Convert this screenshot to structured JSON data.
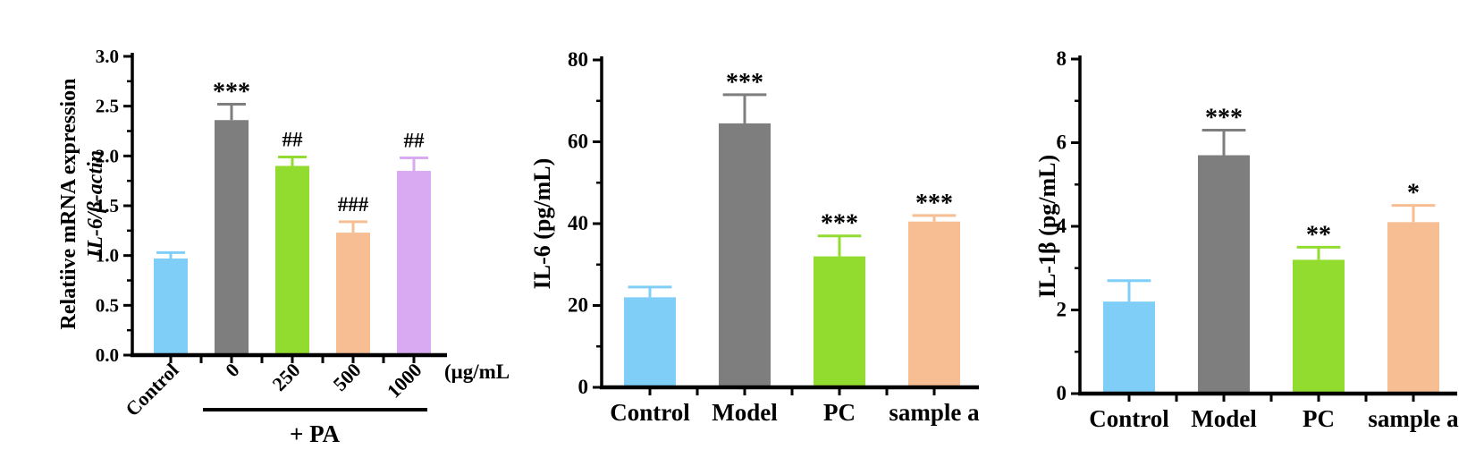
{
  "figure": {
    "background": "#ffffff",
    "axis_color": "#000000",
    "annotation_color": "#000000",
    "palette": {
      "blue": "#7ECEF8",
      "gray": "#7E7E7E",
      "green": "#92DC30",
      "orange": "#F6BE92",
      "purple": "#D9A9F1"
    }
  },
  "chart_data": [
    {
      "type": "bar",
      "id": "il6-mrna",
      "ylabel_line1": "Relatiive mRNA expression",
      "ylabel_line2": "IL-6/β-actin",
      "categories": [
        "Control",
        "0",
        "250",
        "500",
        "1000"
      ],
      "values": [
        0.97,
        2.36,
        1.9,
        1.23,
        1.85
      ],
      "errors": [
        0.06,
        0.16,
        0.09,
        0.11,
        0.13
      ],
      "annotations": [
        "",
        "***",
        "##",
        "###",
        "##"
      ],
      "bar_colors": [
        "#7ECEF8",
        "#7E7E7E",
        "#92DC30",
        "#F6BE92",
        "#D9A9F1"
      ],
      "ylim": [
        0,
        3.0
      ],
      "ytick_step": 0.5,
      "ytick_minor": 0.25,
      "ytick_decimals": 1,
      "x_unit_label": "(μg/mL",
      "group_label": "+ PA",
      "group_span": [
        "0",
        "1000"
      ],
      "x_labels_rotated": true,
      "grid": false,
      "legend": false
    },
    {
      "type": "bar",
      "id": "il6",
      "ylabel": "IL-6 (pg/mL)",
      "categories": [
        "Control",
        "Model",
        "PC",
        "sample a"
      ],
      "values": [
        22,
        64.5,
        32,
        40.5
      ],
      "errors": [
        2.5,
        7,
        5,
        1.5
      ],
      "annotations": [
        "",
        "***",
        "***",
        "***"
      ],
      "bar_colors": [
        "#7ECEF8",
        "#7E7E7E",
        "#92DC30",
        "#F6BE92"
      ],
      "ylim": [
        0,
        80
      ],
      "ytick_step": 20,
      "ytick_minor": 10,
      "ytick_decimals": 0,
      "clipped_right": true,
      "grid": false,
      "legend": false
    },
    {
      "type": "bar",
      "id": "il1b",
      "ylabel": "IL-1β (pg/mL)",
      "categories": [
        "Control",
        "Model",
        "PC",
        "sample a"
      ],
      "values": [
        2.2,
        5.7,
        3.2,
        4.1
      ],
      "errors": [
        0.5,
        0.6,
        0.3,
        0.4
      ],
      "annotations": [
        "",
        "***",
        "**",
        "*"
      ],
      "bar_colors": [
        "#7ECEF8",
        "#7E7E7E",
        "#92DC30",
        "#F6BE92"
      ],
      "ylim": [
        0,
        8
      ],
      "ytick_step": 2,
      "ytick_minor": 1,
      "ytick_decimals": 0,
      "grid": false,
      "legend": false
    }
  ]
}
